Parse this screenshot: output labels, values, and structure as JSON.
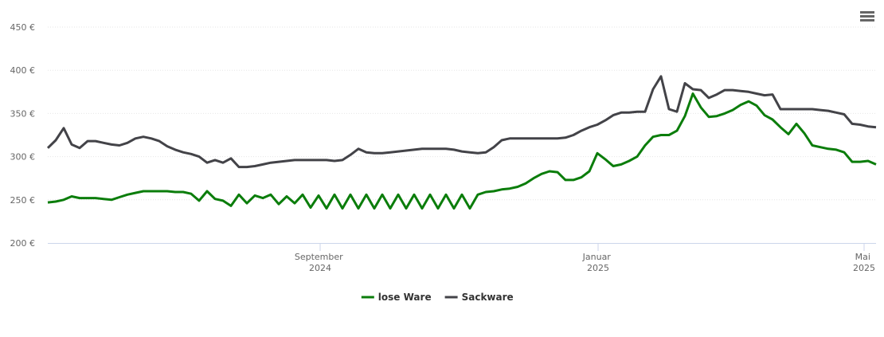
{
  "chart_data": {
    "type": "line",
    "categories": [
      null,
      null,
      null,
      null,
      null,
      null,
      null,
      null,
      null,
      null,
      null,
      null,
      null,
      null,
      null,
      null,
      null,
      null,
      null,
      null,
      null,
      null,
      null,
      null,
      null,
      null,
      null,
      null,
      null,
      null,
      null,
      null,
      null,
      null,
      null,
      null,
      null,
      null,
      null,
      null,
      null,
      null,
      null,
      null,
      null,
      null,
      null,
      null,
      null,
      null,
      null,
      null,
      null,
      null,
      null,
      null,
      null,
      null,
      null,
      null,
      null,
      null,
      null,
      null,
      null,
      null,
      null,
      null,
      null,
      null,
      null,
      null,
      null,
      null,
      null,
      null,
      null,
      null,
      null,
      null,
      null,
      null,
      null,
      null,
      null,
      null,
      null,
      null,
      null,
      null,
      null,
      null,
      null,
      null,
      null,
      null,
      null,
      null,
      null,
      null,
      null,
      null,
      null,
      null,
      null
    ],
    "series": [
      {
        "name": "lose Ware",
        "color": "#0b7d0b",
        "values": [
          247,
          248,
          250,
          254,
          252,
          252,
          252,
          251,
          250,
          253,
          256,
          258,
          260,
          260,
          260,
          260,
          259,
          259,
          257,
          249,
          260,
          251,
          249,
          243,
          256,
          246,
          255,
          252,
          256,
          245,
          254,
          246,
          256,
          241,
          255,
          240,
          256,
          240,
          256,
          240,
          256,
          240,
          256,
          240,
          256,
          240,
          256,
          240,
          256,
          240,
          256,
          240,
          256,
          240,
          256,
          259,
          260,
          262,
          263,
          265,
          269,
          275,
          280,
          283,
          282,
          273,
          273,
          276,
          283,
          304,
          297,
          289,
          291,
          295,
          300,
          313,
          323,
          325,
          325,
          330,
          347,
          373,
          357,
          346,
          347,
          350,
          354,
          360,
          364,
          359,
          348,
          343,
          334,
          326,
          338,
          327,
          313,
          311,
          309,
          308,
          305,
          294,
          294,
          295,
          291
        ]
      },
      {
        "name": "Sackware",
        "color": "#434348",
        "values": [
          310,
          319,
          333,
          314,
          310,
          318,
          318,
          316,
          314,
          313,
          316,
          321,
          323,
          321,
          318,
          312,
          308,
          305,
          303,
          300,
          293,
          296,
          293,
          298,
          288,
          288,
          289,
          291,
          293,
          294,
          295,
          296,
          296,
          296,
          296,
          296,
          295,
          296,
          302,
          309,
          305,
          304,
          304,
          305,
          306,
          307,
          308,
          309,
          309,
          309,
          309,
          308,
          306,
          305,
          304,
          305,
          311,
          319,
          321,
          321,
          321,
          321,
          321,
          321,
          321,
          322,
          325,
          330,
          334,
          337,
          342,
          348,
          351,
          351,
          352,
          352,
          378,
          393,
          355,
          352,
          385,
          378,
          377,
          368,
          372,
          377,
          377,
          376,
          375,
          373,
          371,
          372,
          355,
          355,
          355,
          355,
          355,
          354,
          353,
          351,
          349,
          338,
          337,
          335,
          334
        ]
      }
    ],
    "xlim": [
      0,
      104
    ],
    "xticks": [
      {
        "value": 34.2,
        "label": "September 2024"
      },
      {
        "value": 69.1,
        "label": "Januar 2025"
      },
      {
        "value": 102.5,
        "label": "Mai 2025"
      }
    ],
    "ylim": [
      200,
      450
    ],
    "yticks": [
      {
        "value": 200,
        "label": "200 €"
      },
      {
        "value": 250,
        "label": "250 €"
      },
      {
        "value": 300,
        "label": "300 €"
      },
      {
        "value": 350,
        "label": "350 €"
      },
      {
        "value": 400,
        "label": "400 €"
      },
      {
        "value": 450,
        "label": "450 €"
      }
    ],
    "grid": true,
    "legend": "bottom"
  }
}
